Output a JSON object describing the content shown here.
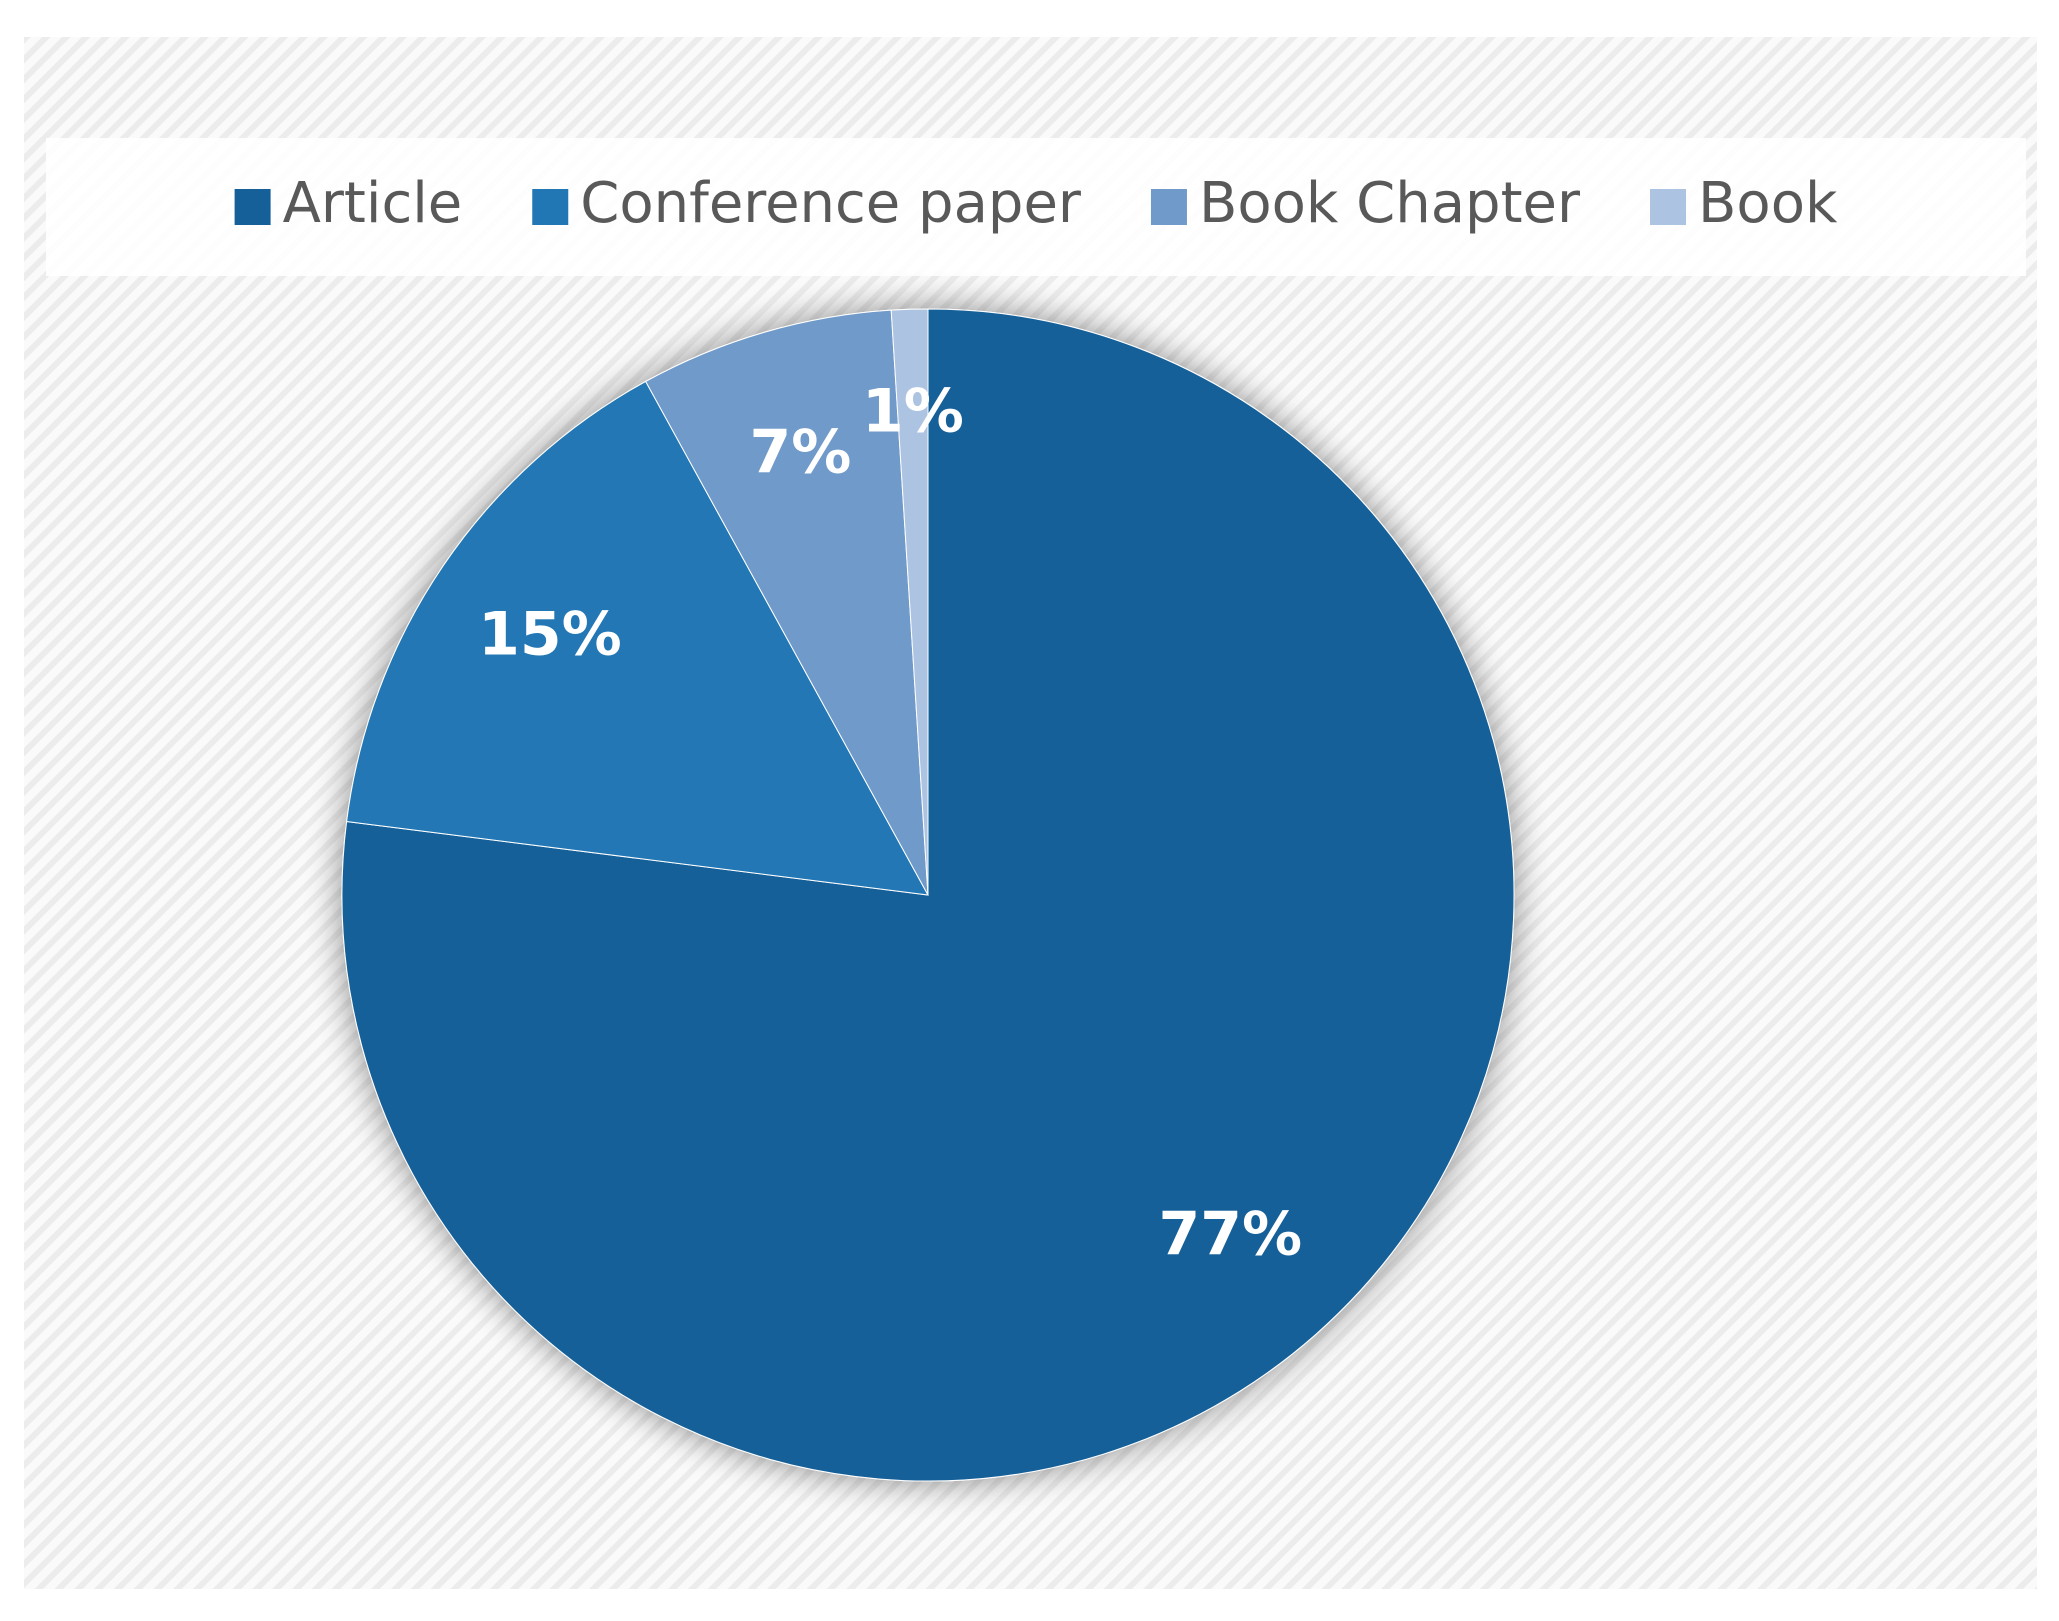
{
  "chart_data": {
    "type": "pie",
    "categories": [
      "Article",
      "Conference paper",
      "Book Chapter",
      "Book"
    ],
    "values": [
      77,
      15,
      7,
      1
    ],
    "value_labels": [
      "77%",
      "15%",
      "7%",
      "1%"
    ],
    "colors": [
      "#156099",
      "#2077b4",
      "#6f9ac9",
      "#adc3e2"
    ],
    "legend": "top"
  }
}
